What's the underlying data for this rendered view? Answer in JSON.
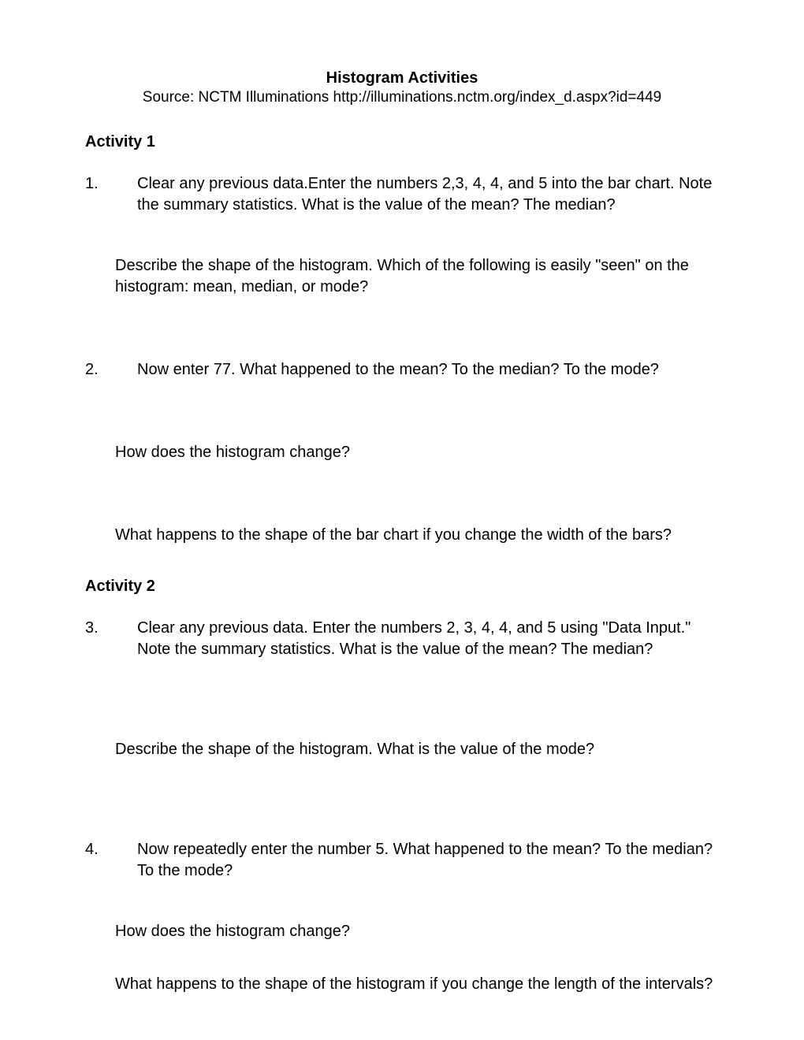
{
  "document": {
    "title": "Histogram Activities",
    "source": "Source: NCTM Illuminations http://illuminations.nctm.org/index_d.aspx?id=449",
    "font_family": "Arial",
    "title_fontsize": 20,
    "body_fontsize": 20,
    "text_color": "#000000",
    "background_color": "#ffffff"
  },
  "activity1": {
    "heading": "Activity 1",
    "q1": {
      "number": "1.",
      "text": "Clear any previous data.Enter the numbers 2,3, 4, 4, and 5 into the bar chart. Note the summary statistics. What is the value of the mean? The median?"
    },
    "q1_followup": "Describe the shape of the histogram. Which of the following is easily \"seen\" on the histogram: mean, median, or mode?",
    "q2": {
      "number": "2.",
      "text": "Now enter 77. What happened to the mean? To the median? To the mode?"
    },
    "q2_followup1": "How does the histogram change?",
    "q2_followup2": "What happens to the shape of the bar chart if you change the width of the bars?"
  },
  "activity2": {
    "heading": "Activity 2",
    "q3": {
      "number": "3.",
      "text": "Clear any previous data. Enter the numbers 2, 3, 4, 4, and 5 using \"Data Input.\" Note the summary statistics.  What is the value of the mean? The median?"
    },
    "q3_followup": "Describe the shape of the histogram. What is the value of the mode?",
    "q4": {
      "number": "4.",
      "text": "Now repeatedly enter the number 5. What happened to the mean? To the median? To the mode?"
    },
    "q4_followup1": "How does the histogram change?",
    "q4_followup2": "What happens to the shape of the histogram if you change the length of the intervals?"
  }
}
